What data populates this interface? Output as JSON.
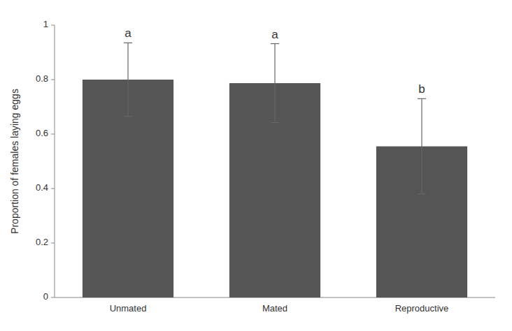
{
  "chart_data": {
    "type": "bar",
    "ylabel": "Proportion of females laying eggs",
    "categories": [
      "Unmated",
      "Mated",
      "Reproductive"
    ],
    "values": [
      0.8,
      0.787,
      0.555
    ],
    "errors": [
      0.135,
      0.145,
      0.175
    ],
    "annotations": [
      "a",
      "a",
      "b"
    ],
    "color": "#555555",
    "ylim": [
      0,
      1.0
    ],
    "yticks": [
      0,
      0.2,
      0.4,
      0.6,
      0.8,
      1
    ],
    "grid": false
  }
}
